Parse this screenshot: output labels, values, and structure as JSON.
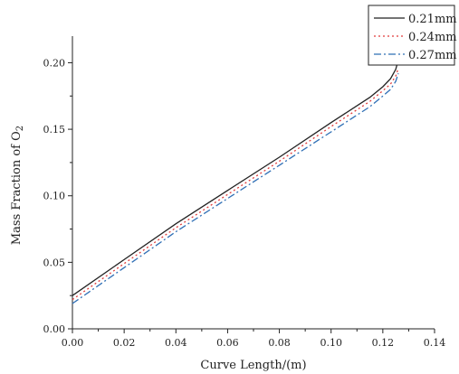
{
  "chart_data": {
    "type": "line",
    "title": "",
    "xlabel": "Curve Length/(m)",
    "ylabel_main": "Mass Fraction of O",
    "ylabel_sub": "2",
    "xlim": [
      0.0,
      0.14
    ],
    "ylim": [
      0.0,
      0.22
    ],
    "xticks": [
      "0.00",
      "0.02",
      "0.04",
      "0.06",
      "0.08",
      "0.10",
      "0.12",
      "0.14"
    ],
    "yticks": [
      "0.00",
      "0.05",
      "0.10",
      "0.15",
      "0.20"
    ],
    "legend_position": "top-right",
    "series": [
      {
        "name": "0.21mm",
        "color": "#222222",
        "dash": "solid",
        "x": [
          0.0,
          0.02,
          0.04,
          0.06,
          0.08,
          0.1,
          0.115,
          0.12,
          0.123,
          0.125,
          0.126
        ],
        "y": [
          0.025,
          0.052,
          0.079,
          0.104,
          0.129,
          0.155,
          0.174,
          0.182,
          0.188,
          0.195,
          0.202
        ]
      },
      {
        "name": "0.24mm",
        "color": "#e03a3a",
        "dash": "dot",
        "x": [
          0.0,
          0.02,
          0.04,
          0.06,
          0.08,
          0.1,
          0.115,
          0.12,
          0.123,
          0.125,
          0.126
        ],
        "y": [
          0.022,
          0.049,
          0.076,
          0.101,
          0.126,
          0.152,
          0.171,
          0.179,
          0.184,
          0.19,
          0.196
        ]
      },
      {
        "name": "0.27mm",
        "color": "#2f6fb5",
        "dash": "dashdot",
        "x": [
          0.0,
          0.02,
          0.04,
          0.06,
          0.08,
          0.1,
          0.115,
          0.12,
          0.123,
          0.125,
          0.126
        ],
        "y": [
          0.019,
          0.046,
          0.073,
          0.098,
          0.123,
          0.148,
          0.167,
          0.175,
          0.18,
          0.186,
          0.192
        ]
      }
    ]
  }
}
